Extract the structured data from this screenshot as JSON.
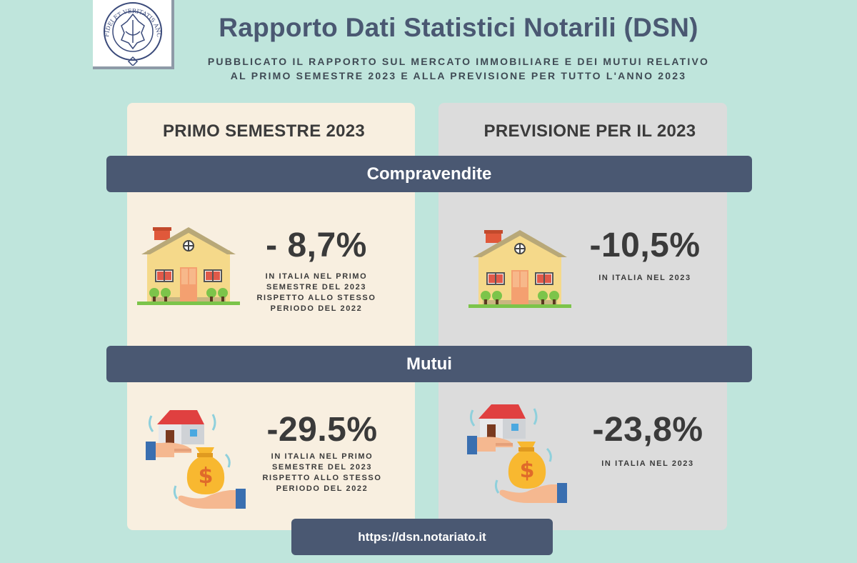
{
  "header": {
    "title": "Rapporto Dati Statistici Notarili (DSN)",
    "subtitle_lines": [
      "PUBBLICATO IL RAPPORTO SUL MERCATO IMMOBILIARE E DEI MUTUI RELATIVO",
      "AL PRIMO SEMESTRE 2023 E ALLA PREVISIONE PER TUTTO L'ANNO 2023"
    ],
    "logo_text": "FIDEI ET VERITATIS ANCHORA"
  },
  "columns": {
    "left": "PRIMO SEMESTRE 2023",
    "right": "PREVISIONE PER IL 2023"
  },
  "sections": {
    "compravendite": {
      "label": "Compravendite",
      "left_value": "- 8,7%",
      "left_caption": [
        "IN ITALIA NEL PRIMO",
        "SEMESTRE DEL 2023",
        "RISPETTO ALLO STESSO",
        "PERIODO DEL 2022"
      ],
      "right_value": "-10,5%",
      "right_caption": [
        "IN ITALIA NEL 2023"
      ]
    },
    "mutui": {
      "label": "Mutui",
      "left_value": "-29.5%",
      "left_caption": [
        "IN ITALIA NEL PRIMO",
        "SEMESTRE DEL 2023",
        "RISPETTO ALLO STESSO",
        "PERIODO DEL 2022"
      ],
      "right_value": "-23,8%",
      "right_caption": [
        "IN ITALIA NEL 2023"
      ]
    }
  },
  "footer": {
    "url": "https://dsn.notariato.it"
  },
  "icons": {
    "house": "house-icon",
    "mortgage": "mortgage-hand-money-icon",
    "logo": "notary-seal-logo"
  },
  "colors": {
    "background": "#bfe5dc",
    "band": "#4a5872",
    "left_panel": "#f8efe0",
    "right_panel": "#dcdcdc",
    "title": "#4a5872"
  }
}
